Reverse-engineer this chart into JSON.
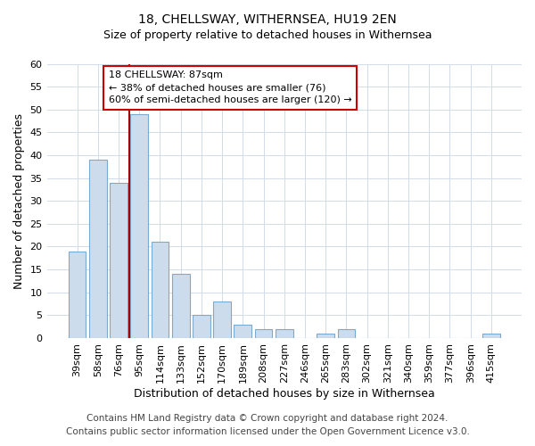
{
  "title": "18, CHELLSWAY, WITHERNSEA, HU19 2EN",
  "subtitle": "Size of property relative to detached houses in Withernsea",
  "xlabel": "Distribution of detached houses by size in Withernsea",
  "ylabel": "Number of detached properties",
  "bar_labels": [
    "39sqm",
    "58sqm",
    "76sqm",
    "95sqm",
    "114sqm",
    "133sqm",
    "152sqm",
    "170sqm",
    "189sqm",
    "208sqm",
    "227sqm",
    "246sqm",
    "265sqm",
    "283sqm",
    "302sqm",
    "321sqm",
    "340sqm",
    "359sqm",
    "377sqm",
    "396sqm",
    "415sqm"
  ],
  "bar_values": [
    19,
    39,
    34,
    49,
    21,
    14,
    5,
    8,
    3,
    2,
    2,
    0,
    1,
    2,
    0,
    0,
    0,
    0,
    0,
    0,
    1
  ],
  "bar_color": "#cddcec",
  "bar_edge_color": "#7aaacf",
  "ylim": [
    0,
    60
  ],
  "yticks": [
    0,
    5,
    10,
    15,
    20,
    25,
    30,
    35,
    40,
    45,
    50,
    55,
    60
  ],
  "property_label": "18 CHELLSWAY: 87sqm",
  "annotation_line1": "← 38% of detached houses are smaller (76)",
  "annotation_line2": "60% of semi-detached houses are larger (120) →",
  "annotation_box_color": "#ffffff",
  "annotation_box_edge": "#cc0000",
  "line_color": "#aa0000",
  "footer1": "Contains HM Land Registry data © Crown copyright and database right 2024.",
  "footer2": "Contains public sector information licensed under the Open Government Licence v3.0.",
  "background_color": "#ffffff",
  "plot_background": "#ffffff",
  "grid_color": "#d0dce8",
  "title_fontsize": 10,
  "axis_label_fontsize": 9,
  "tick_fontsize": 8,
  "footer_fontsize": 7.5
}
